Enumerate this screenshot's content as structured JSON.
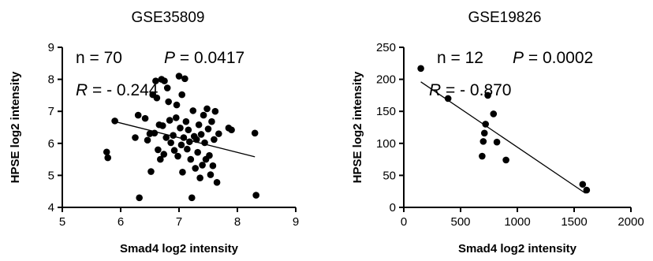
{
  "chart_data": [
    {
      "type": "scatter",
      "title": "GSE35809",
      "xlabel": "Smad4 log2 intensity",
      "ylabel": "HPSE log2 intensity",
      "xlim": [
        5,
        9
      ],
      "ylim": [
        4,
        9
      ],
      "xticks": [
        5,
        6,
        7,
        8,
        9
      ],
      "yticks": [
        4,
        5,
        6,
        7,
        8,
        9
      ],
      "annotations": {
        "n": "n = 70",
        "p_label": "P",
        "p_value": "= 0.0417",
        "r_label": "R",
        "r_value": "= - 0.244"
      },
      "regression_line": {
        "x": [
          5.9,
          8.3
        ],
        "y": [
          6.68,
          5.58
        ]
      },
      "points": [
        [
          5.76,
          5.73
        ],
        [
          5.78,
          5.55
        ],
        [
          5.9,
          6.7
        ],
        [
          6.25,
          6.18
        ],
        [
          6.3,
          6.88
        ],
        [
          6.32,
          4.3
        ],
        [
          6.42,
          6.78
        ],
        [
          6.46,
          6.1
        ],
        [
          6.5,
          6.3
        ],
        [
          6.52,
          5.12
        ],
        [
          6.55,
          7.52
        ],
        [
          6.58,
          6.32
        ],
        [
          6.6,
          7.95
        ],
        [
          6.62,
          7.42
        ],
        [
          6.64,
          5.8
        ],
        [
          6.66,
          6.58
        ],
        [
          6.68,
          5.5
        ],
        [
          6.7,
          8.0
        ],
        [
          6.72,
          6.55
        ],
        [
          6.74,
          5.66
        ],
        [
          6.75,
          7.95
        ],
        [
          6.78,
          6.18
        ],
        [
          6.8,
          7.73
        ],
        [
          6.82,
          7.3
        ],
        [
          6.84,
          6.72
        ],
        [
          6.86,
          6.02
        ],
        [
          6.9,
          6.25
        ],
        [
          6.92,
          5.78
        ],
        [
          6.95,
          6.8
        ],
        [
          6.96,
          7.2
        ],
        [
          6.98,
          5.6
        ],
        [
          7.0,
          8.1
        ],
        [
          7.02,
          6.48
        ],
        [
          7.04,
          5.95
        ],
        [
          7.05,
          7.52
        ],
        [
          7.06,
          5.1
        ],
        [
          7.08,
          6.18
        ],
        [
          7.1,
          8.02
        ],
        [
          7.12,
          6.68
        ],
        [
          7.14,
          5.82
        ],
        [
          7.16,
          6.42
        ],
        [
          7.18,
          6.05
        ],
        [
          7.2,
          5.5
        ],
        [
          7.22,
          4.3
        ],
        [
          7.24,
          7.02
        ],
        [
          7.26,
          6.22
        ],
        [
          7.28,
          5.22
        ],
        [
          7.3,
          6.12
        ],
        [
          7.32,
          5.72
        ],
        [
          7.34,
          6.58
        ],
        [
          7.36,
          4.92
        ],
        [
          7.38,
          6.28
        ],
        [
          7.4,
          5.32
        ],
        [
          7.42,
          6.88
        ],
        [
          7.44,
          6.02
        ],
        [
          7.46,
          5.5
        ],
        [
          7.48,
          7.08
        ],
        [
          7.5,
          6.45
        ],
        [
          7.52,
          5.62
        ],
        [
          7.54,
          5.02
        ],
        [
          7.56,
          6.68
        ],
        [
          7.58,
          5.3
        ],
        [
          7.6,
          6.12
        ],
        [
          7.62,
          7.0
        ],
        [
          7.65,
          4.78
        ],
        [
          7.68,
          6.3
        ],
        [
          7.85,
          6.48
        ],
        [
          7.9,
          6.42
        ],
        [
          8.3,
          6.32
        ],
        [
          8.32,
          4.38
        ]
      ]
    },
    {
      "type": "scatter",
      "title": "GSE19826",
      "xlabel": "Smad4 log2 intensity",
      "ylabel": "HPSE log2 intensity",
      "xlim": [
        0,
        2000
      ],
      "ylim": [
        0,
        250
      ],
      "xticks": [
        0,
        500,
        1000,
        1500,
        2000
      ],
      "yticks": [
        0,
        50,
        100,
        150,
        200,
        250
      ],
      "annotations": {
        "n": "n = 12",
        "p_label": "P",
        "p_value": "= 0.0002",
        "r_label": "R",
        "r_value": "= - 0.870"
      },
      "regression_line": {
        "x": [
          150,
          1600
        ],
        "y": [
          196,
          22
        ]
      },
      "points": [
        [
          150,
          217
        ],
        [
          390,
          170
        ],
        [
          690,
          80
        ],
        [
          700,
          103
        ],
        [
          710,
          116
        ],
        [
          720,
          130
        ],
        [
          740,
          175
        ],
        [
          790,
          146
        ],
        [
          820,
          102
        ],
        [
          900,
          74
        ],
        [
          1575,
          36
        ],
        [
          1610,
          27
        ]
      ]
    }
  ]
}
